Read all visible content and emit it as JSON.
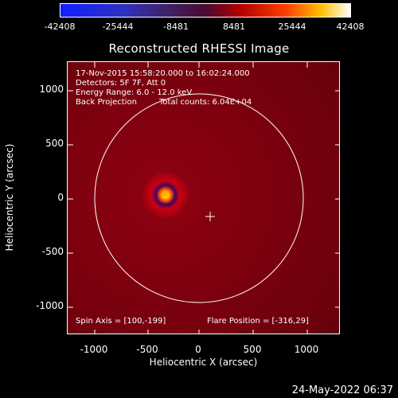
{
  "colorbar": {
    "tick_labels": [
      "-42408",
      "-25444",
      "-8481",
      "8481",
      "25444",
      "42408"
    ]
  },
  "title": "Reconstructed RHESSI Image",
  "annotations": {
    "time_range": "17-Nov-2015 15:58:20.000 to 16:02:24.000",
    "detectors": "Detectors: 5F 7F, Att 0",
    "energy_range": "Energy Range: 6.0 - 12.0 keV",
    "method": "Back Projection",
    "total_counts": "Total counts: 6.04E+04",
    "spin_axis": "Spin Axis = [100,-199]",
    "flare_position": "Flare Position = [-316,29]"
  },
  "axes": {
    "xlabel": "Heliocentric X (arcsec)",
    "ylabel": "Heliocentric Y (arcsec)",
    "x_ticks": [
      "-1000",
      "-500",
      "0",
      "500",
      "1000"
    ],
    "y_ticks": [
      "1000",
      "500",
      "0",
      "-500",
      "-1000"
    ]
  },
  "image": {
    "source_x": -316,
    "source_y": 29,
    "spin_axis_x": 100,
    "spin_axis_y": -199,
    "solar_limb_radius_arcsec": 970
  },
  "datestamp": "24-May-2022 06:37"
}
